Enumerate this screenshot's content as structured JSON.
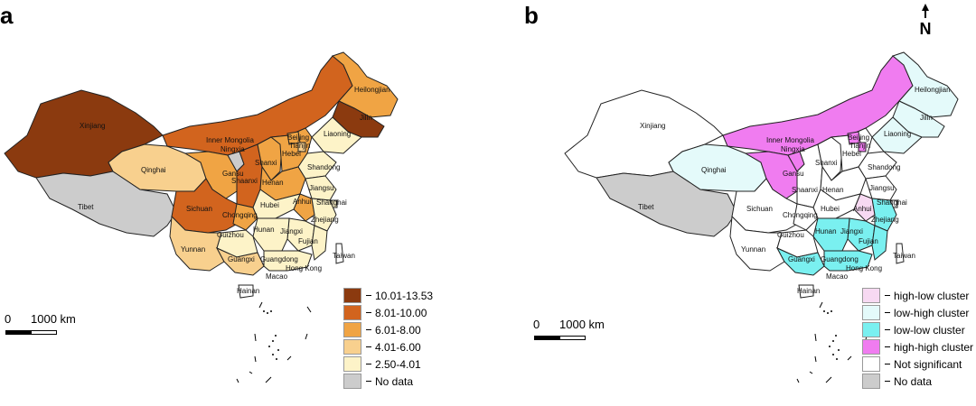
{
  "panel_a": {
    "label": "a",
    "legend": [
      {
        "label": "10.01-13.53",
        "color": "#8B3A0F"
      },
      {
        "label": "8.01-10.00",
        "color": "#D2641E"
      },
      {
        "label": "6.01-8.00",
        "color": "#F0A444"
      },
      {
        "label": "4.01-6.00",
        "color": "#F8D08E"
      },
      {
        "label": "2.50-4.01",
        "color": "#FDF3C8"
      },
      {
        "label": "No data",
        "color": "#CCCCCC"
      }
    ],
    "scale_zero": "0",
    "scale_label": "1000 km",
    "provinces": {
      "xinjiang": "Xinjiang",
      "tibet": "Tibet",
      "qinghai": "Qinghai",
      "inner_mongolia": "Inner Mongolia",
      "heilongjian": "Heilongjian",
      "jilin": "Jilin",
      "liaoning": "Liaoning",
      "beijing": "Beijing",
      "tianjin": "Tianjin",
      "hebei": "Hebei",
      "shandong": "Shandong",
      "shanxi": "Shanxi",
      "ningxia": "Ningxia",
      "gansu": "Gansu",
      "shaanxi": "Shaanxi",
      "henan": "Henan",
      "jiangsu": "Jiangsu",
      "shanghai": "Shanghai",
      "anhui": "Anhui",
      "hubei": "Hubei",
      "sichuan": "Sichuan",
      "chongqing": "Chongqing",
      "zhejiang": "Zhejiang",
      "hunan": "Hunan",
      "jiangxi": "Jiangxi",
      "guizhou": "Guizhou",
      "fujian": "Fujian",
      "yunnan": "Yunnan",
      "guangxi": "Guangxi",
      "guangdong": "Guangdong",
      "taiwan": "Taiwan",
      "hongkong": "Hong Kong",
      "macao": "Macao",
      "hainan": "Hainan"
    }
  },
  "panel_b": {
    "label": "b",
    "north_label": "N",
    "legend": [
      {
        "label": "high-low cluster",
        "color": "#F7D9F2"
      },
      {
        "label": "low-high cluster",
        "color": "#E4FAFA"
      },
      {
        "label": "low-low cluster",
        "color": "#7AF0F0"
      },
      {
        "label": "high-high cluster",
        "color": "#F07CF0"
      },
      {
        "label": "Not significant",
        "color": "#FFFFFF"
      },
      {
        "label": "No data",
        "color": "#CCCCCC"
      }
    ],
    "scale_zero": "0",
    "scale_label": "1000 km"
  }
}
